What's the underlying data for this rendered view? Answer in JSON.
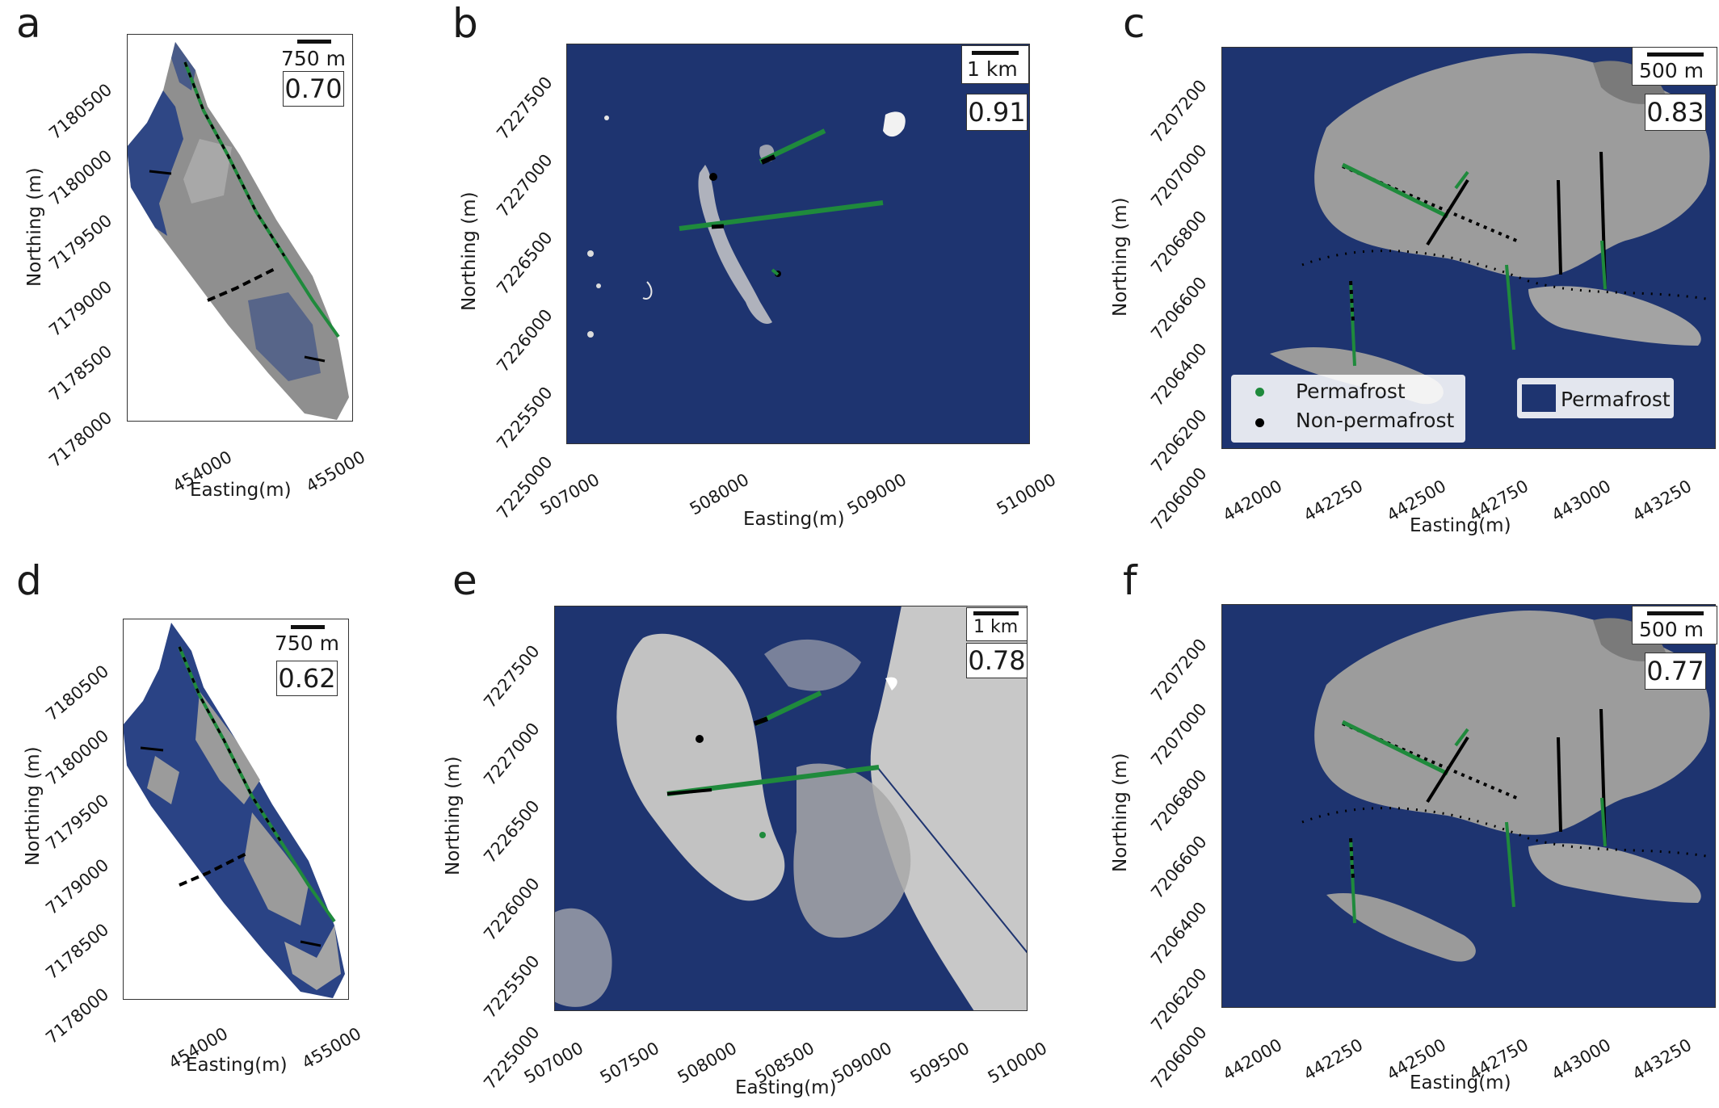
{
  "colors": {
    "permafrost": "#1e3470",
    "terrain": "#9a9a9a",
    "green": "#1f8a3c",
    "black": "#000000"
  },
  "legend": {
    "permafrost_point": "Permafrost",
    "nonpermafrost_point": "Non-permafrost",
    "permafrost_area": "Permafrost"
  },
  "panels": [
    {
      "id": "a",
      "letter": "a",
      "score": "0.70",
      "scale": "750 m",
      "xlabel": "Easting(m)",
      "ylabel": "Northing (m)",
      "xticks": [
        "454000",
        "455000"
      ],
      "yticks": [
        "7178000",
        "7178500",
        "7179000",
        "7179500",
        "7180000",
        "7180500"
      ]
    },
    {
      "id": "b",
      "letter": "b",
      "score": "0.91",
      "scale": "1 km",
      "xlabel": "Easting(m)",
      "ylabel": "Northing (m)",
      "xticks": [
        "507000",
        "508000",
        "509000",
        "510000"
      ],
      "yticks": [
        "7225000",
        "7225500",
        "7226000",
        "7226500",
        "7227000",
        "7227500"
      ]
    },
    {
      "id": "c",
      "letter": "c",
      "score": "0.83",
      "scale": "500 m",
      "xlabel": "Easting(m)",
      "ylabel": "Northing (m)",
      "xticks": [
        "442000",
        "442250",
        "442500",
        "442750",
        "443000",
        "443250"
      ],
      "yticks": [
        "7206000",
        "7206200",
        "7206400",
        "7206600",
        "7206800",
        "7207000",
        "7207200"
      ]
    },
    {
      "id": "d",
      "letter": "d",
      "score": "0.62",
      "scale": "750 m",
      "xlabel": "Easting(m)",
      "ylabel": "Northing (m)",
      "xticks": [
        "454000",
        "455000"
      ],
      "yticks": [
        "7178000",
        "7178500",
        "7179000",
        "7179500",
        "7180000",
        "7180500"
      ]
    },
    {
      "id": "e",
      "letter": "e",
      "score": "0.78",
      "scale": "1 km",
      "xlabel": "Easting(m)",
      "ylabel": "Northing (m)",
      "xticks": [
        "507000",
        "507500",
        "508000",
        "508500",
        "509000",
        "509500",
        "510000"
      ],
      "yticks": [
        "7225000",
        "7225500",
        "7226000",
        "7226500",
        "7227000",
        "7227500"
      ]
    },
    {
      "id": "f",
      "letter": "f",
      "score": "0.77",
      "scale": "500 m",
      "xlabel": "Easting(m)",
      "ylabel": "Northing (m)",
      "xticks": [
        "442000",
        "442250",
        "442500",
        "442750",
        "443000",
        "443250"
      ],
      "yticks": [
        "7206000",
        "7206200",
        "7206400",
        "7206600",
        "7206800",
        "7207000",
        "7207200"
      ]
    }
  ]
}
